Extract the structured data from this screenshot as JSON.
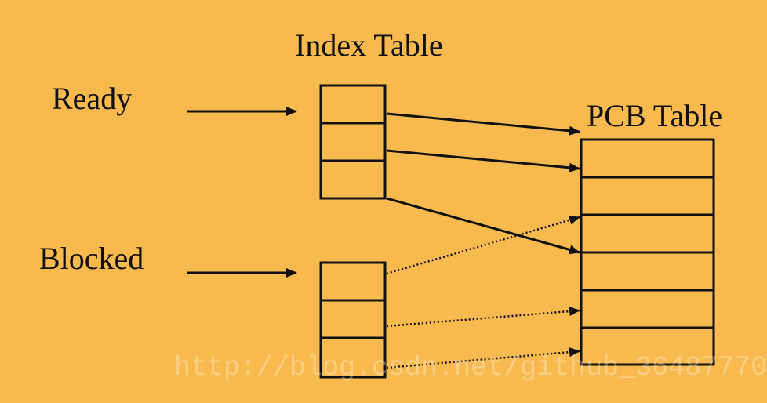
{
  "labels": {
    "index_table": "Index Table",
    "pcb_table": "PCB Table",
    "ready": "Ready",
    "blocked": "Blocked"
  },
  "watermark": "http://blog.csdn.net/github_36487770",
  "diagram": {
    "ready_index_cells": 3,
    "blocked_index_cells": 3,
    "pcb_rows": 6
  },
  "colors": {
    "background": "#f8ba4f",
    "stroke": "#111111",
    "text": "#111111"
  }
}
